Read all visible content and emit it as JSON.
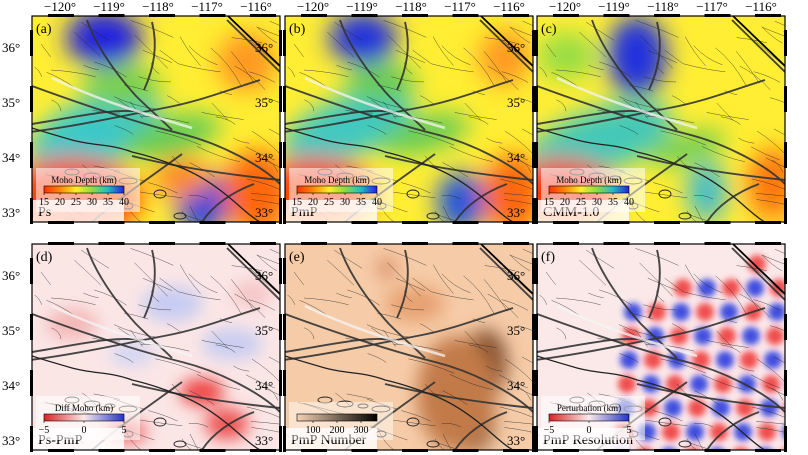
{
  "figure": {
    "top_lon_labels": [
      "−120°",
      "−119°",
      "−118°",
      "−117°",
      "−116°"
    ],
    "lat_labels_top_row": [
      "36°",
      "35°",
      "34°",
      "33°"
    ],
    "lat_labels_bottom_row": [
      "36°",
      "35°",
      "34°",
      "33°"
    ]
  },
  "panels": [
    {
      "letter": "(a)",
      "name": "Ps",
      "kind": "moho",
      "variant": 0,
      "colorbar": {
        "title": "Moho Depth (km)",
        "ticks": [
          "15",
          "20",
          "25",
          "30",
          "35",
          "40"
        ]
      }
    },
    {
      "letter": "(b)",
      "name": "PmP",
      "kind": "moho",
      "variant": 1,
      "colorbar": {
        "title": "Moho Depth (km)",
        "ticks": [
          "15",
          "20",
          "25",
          "30",
          "35",
          "40"
        ]
      }
    },
    {
      "letter": "(c)",
      "name": "CMM-1.0",
      "kind": "moho",
      "variant": 2,
      "colorbar": {
        "title": "Moho Depth (km)",
        "ticks": [
          "15",
          "20",
          "25",
          "30",
          "35",
          "40"
        ]
      }
    },
    {
      "letter": "(d)",
      "name": "Ps-PmP",
      "kind": "diff",
      "colorbar": {
        "title": "Diff Moho (km)",
        "ticks": [
          "−5",
          "0",
          "5"
        ]
      }
    },
    {
      "letter": "(e)",
      "name": "PmP Number",
      "kind": "count",
      "colorbar": {
        "title": "",
        "ticks": [
          "100",
          "200",
          "300"
        ]
      }
    },
    {
      "letter": "(f)",
      "name": "PmP Resolution",
      "kind": "resolution",
      "colorbar": {
        "title": "Perturbation (km)",
        "ticks": [
          "−5",
          "0",
          "5"
        ]
      }
    }
  ],
  "colors": {
    "moho_scale": [
      "#ff3300",
      "#ff8800",
      "#ffee22",
      "#88dd44",
      "#22bbcc",
      "#2222dd"
    ],
    "diff_scale": [
      "#dd2222",
      "#fbe9e9",
      "#2233cc"
    ],
    "count_scale": [
      "#f6d2b4",
      "#000000"
    ],
    "fault": "#222222",
    "border": "#000000"
  }
}
